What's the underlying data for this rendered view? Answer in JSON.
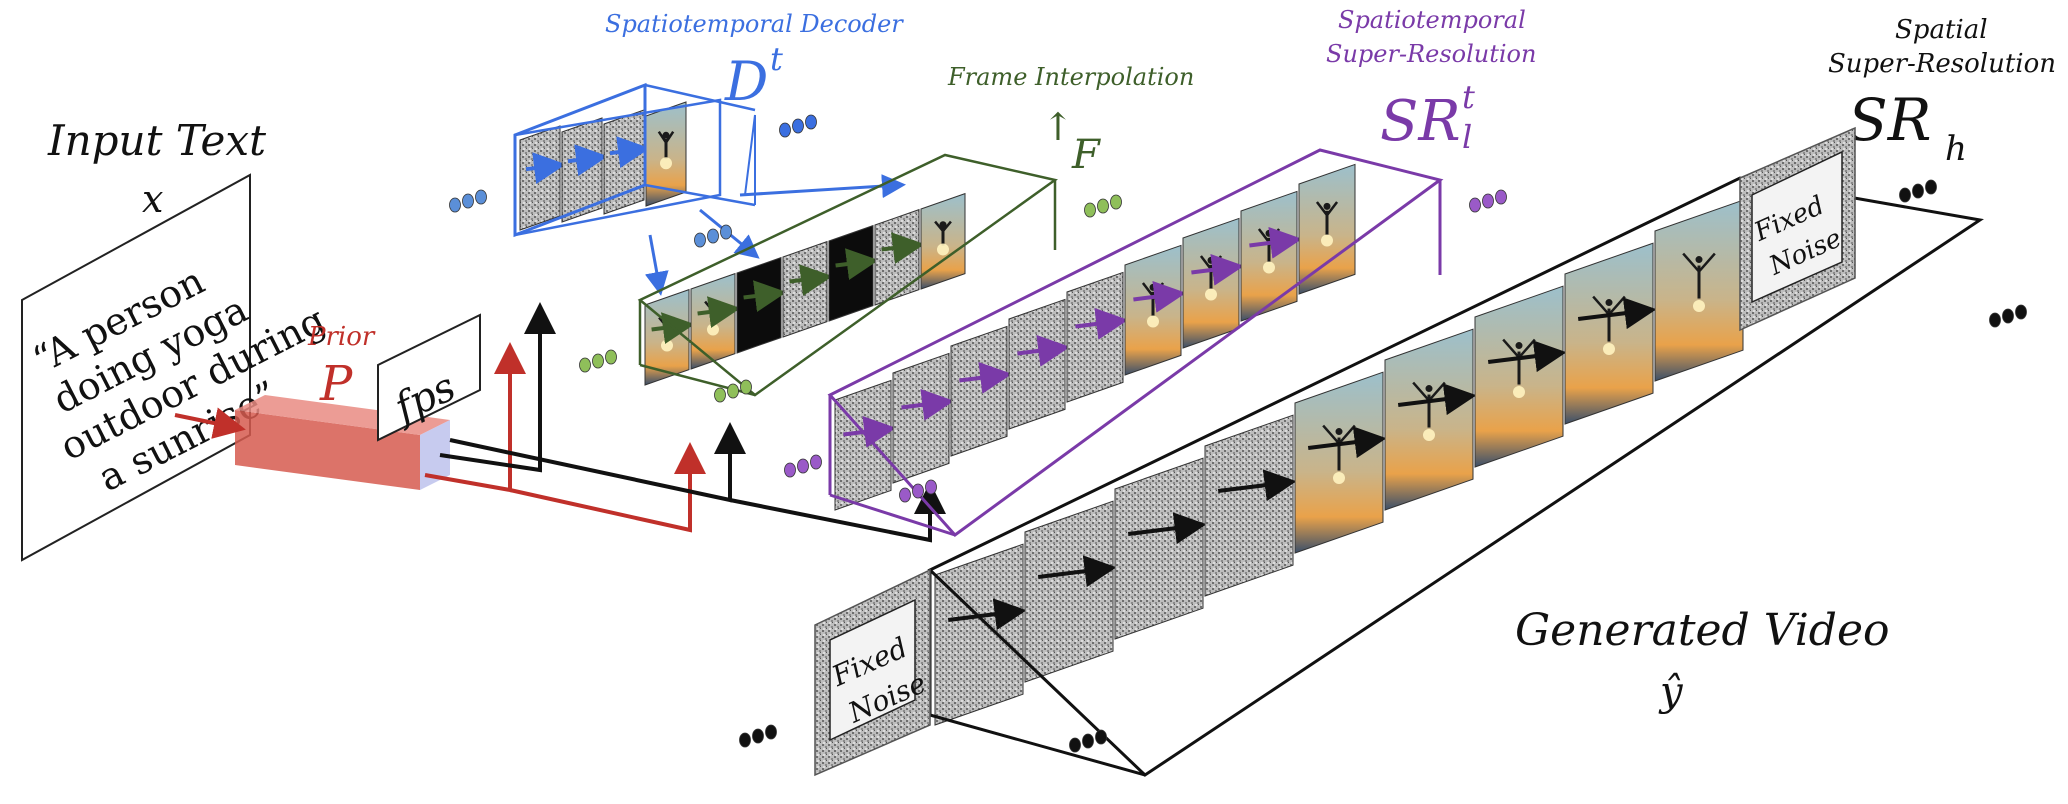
{
  "input": {
    "heading": "Input Text",
    "variable": "x",
    "prompt_lines": [
      "“A person",
      "doing yoga",
      "outdoor during",
      "a sunrise”"
    ]
  },
  "prior": {
    "label": "Prior",
    "symbol": "P"
  },
  "fps_label": "fps",
  "decoder": {
    "title": "Spatiotemporal Decoder",
    "symbol": "D",
    "superscript": "t"
  },
  "interp": {
    "title": "Frame Interpolation",
    "symbol": "F",
    "arrow_glyph": "↑"
  },
  "sr_low": {
    "title_line1": "Spatiotemporal",
    "title_line2": "Super-Resolution",
    "symbol": "SR",
    "superscript": "t",
    "subscript": "l"
  },
  "sr_high": {
    "title_line1": "Spatial",
    "title_line2": "Super-Resolution",
    "symbol": "SR",
    "subscript": "h"
  },
  "noise_front": {
    "line1": "Fixed",
    "line2": "Noise"
  },
  "noise_back": {
    "line1": "Fixed",
    "line2": "Noise"
  },
  "output": {
    "title": "Generated Video",
    "symbol": "ŷ"
  },
  "colors": {
    "decoder": "#3b6fe0",
    "interp": "#3e5f2a",
    "sr_low": "#7a3aa8",
    "prior": "#c0302a",
    "conditioning": "#111111"
  }
}
